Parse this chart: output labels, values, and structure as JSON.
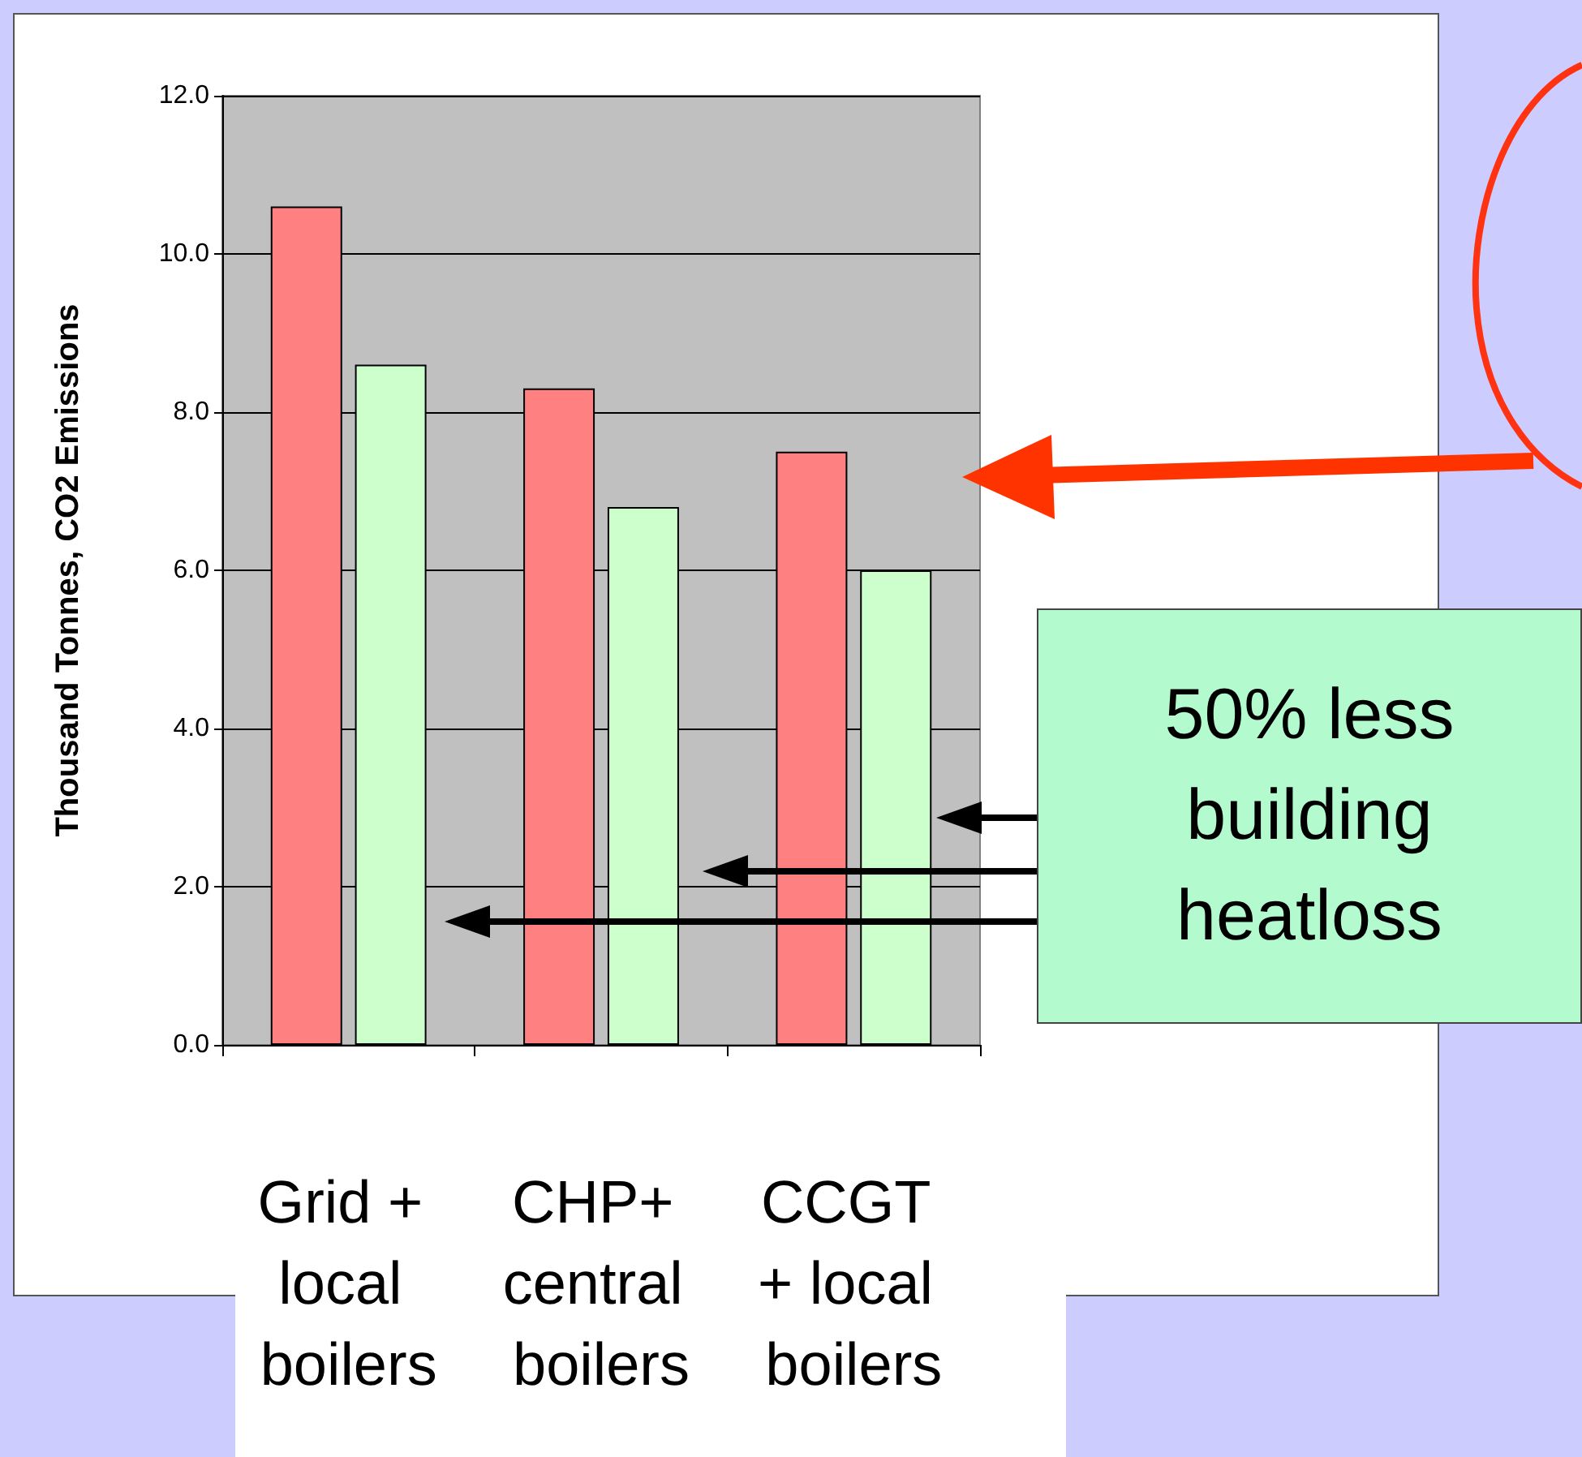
{
  "chart_data": {
    "type": "bar",
    "ylabel": "Thousand Tonnes, CO2 Emissions",
    "categories": [
      "Grid + local boilers",
      "CHP+ central boilers",
      "CCGT + local boilers"
    ],
    "series": [
      {
        "color": "#ff8080",
        "values": [
          10.6,
          8.3,
          7.5
        ]
      },
      {
        "color": "#ccffcc",
        "values": [
          8.6,
          6.8,
          6.0
        ]
      }
    ],
    "ylim": [
      0,
      12
    ],
    "yticks": [
      {
        "value": 0,
        "label": "0.0"
      },
      {
        "value": 2,
        "label": "2.0"
      },
      {
        "value": 4,
        "label": "4.0"
      },
      {
        "value": 6,
        "label": "6.0"
      },
      {
        "value": 8,
        "label": "8.0"
      },
      {
        "value": 10,
        "label": "10.0"
      },
      {
        "value": 12,
        "label": "12.0"
      }
    ],
    "grid": "y",
    "annotations": [
      "50% less building heatloss"
    ]
  }
}
